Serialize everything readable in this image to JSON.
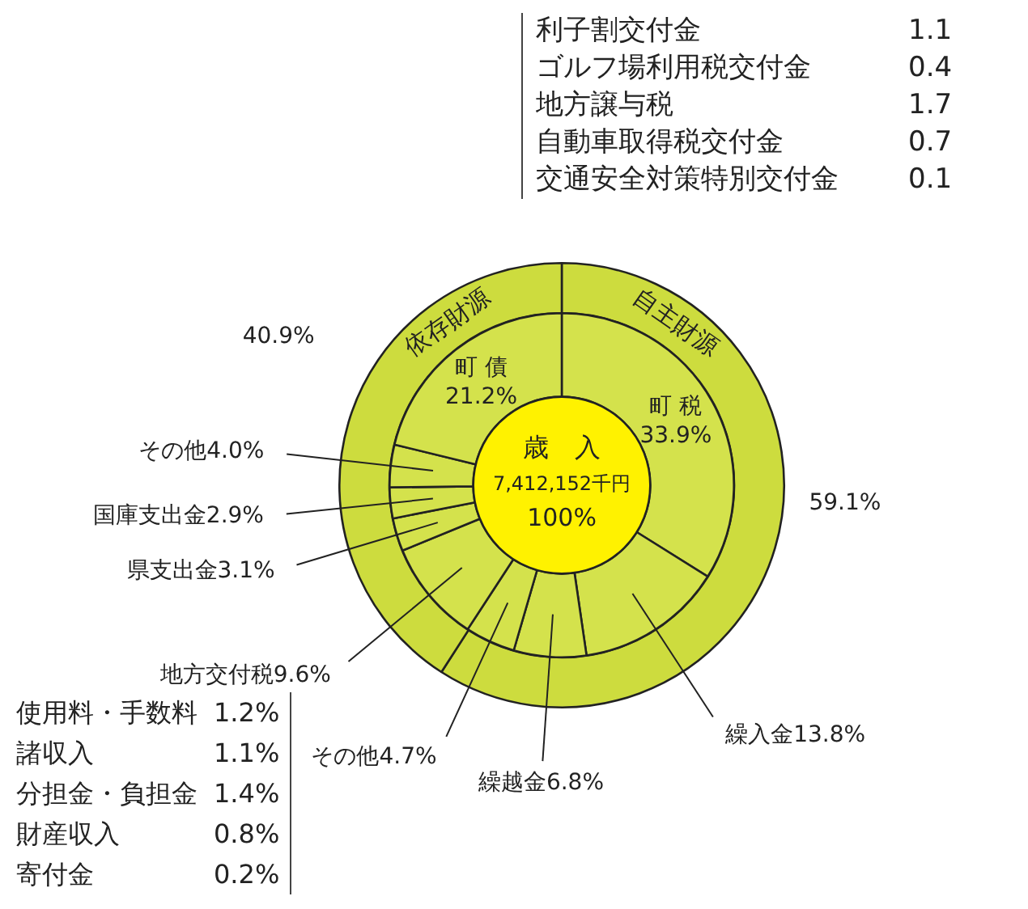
{
  "chart_data": [
    {
      "type": "donut",
      "categories": [
        "町税",
        "繰入金",
        "繰越金",
        "その他",
        "地方交付税",
        "県支出金",
        "国庫支出金",
        "その他",
        "町債"
      ],
      "values": [
        33.9,
        13.8,
        6.8,
        4.7,
        9.6,
        3.1,
        2.9,
        4.0,
        21.2
      ],
      "value_labels": [
        "33.9%",
        "13.8%",
        "6.8%",
        "4.7%",
        "9.6%",
        "3.1%",
        "2.9%",
        "4.0%",
        "21.2%"
      ],
      "colors": [
        "#d4e24c",
        "#d4e24c",
        "#d4e24c",
        "#d4e24c",
        "#d4e24c",
        "#d4e24c",
        "#d4e24c",
        "#d4e24c",
        "#d4e24c"
      ],
      "annotations": [
        "歳　入",
        "7,412,152千円",
        "100%",
        "利子割交付金　1.1",
        "ゴルフ場利用税交付金　0.4",
        "地方譲与税　1.7",
        "自動車取得税交付金　0.7",
        "交通安全対策特別交付金　0.1",
        "使用料・手数料　1.2%",
        "諸収入　1.1%",
        "分担金・負担金　1.4%",
        "財産収入　0.8%",
        "寄付金　0.2%"
      ]
    },
    {
      "type": "donut",
      "categories": [
        "自主財源",
        "依存財源"
      ],
      "values": [
        59.1,
        40.9
      ],
      "value_labels": [
        "59.1%",
        "40.9%"
      ],
      "colors": [
        "#cddc3e",
        "#cddc3e"
      ]
    }
  ]
}
